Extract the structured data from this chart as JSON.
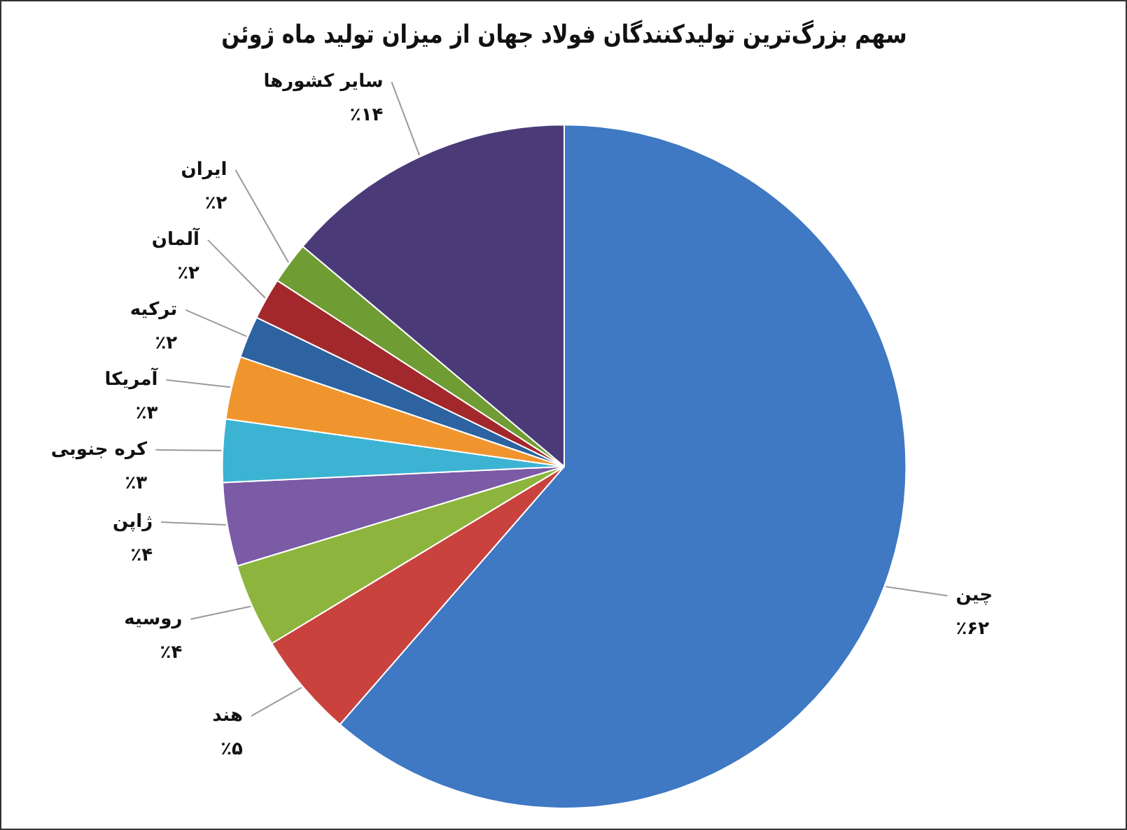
{
  "chart_data": {
    "type": "pie",
    "title": "سهم بزرگ‌ترین تولیدکنندگان فولاد جهان از میزان تولید ماه ژوئن",
    "categories": [
      "چین",
      "هند",
      "روسیه",
      "ژاپن",
      "کره جنوبی",
      "آمریکا",
      "ترکیه",
      "آلمان",
      "ایران",
      "سایر کشورها"
    ],
    "values": [
      62,
      5,
      4,
      4,
      3,
      3,
      2,
      2,
      2,
      14
    ],
    "value_labels": [
      "٪۶۲",
      "٪۵",
      "٪۴",
      "٪۴",
      "٪۳",
      "٪۳",
      "٪۲",
      "٪۲",
      "٪۲",
      "٪۱۴"
    ],
    "colors": [
      "#3f78c3",
      "#c9423d",
      "#8db53e",
      "#7b5aa6",
      "#3cb3d3",
      "#f0952e",
      "#2c63a0",
      "#a2282c",
      "#6f9c33",
      "#4a3b78"
    ]
  }
}
